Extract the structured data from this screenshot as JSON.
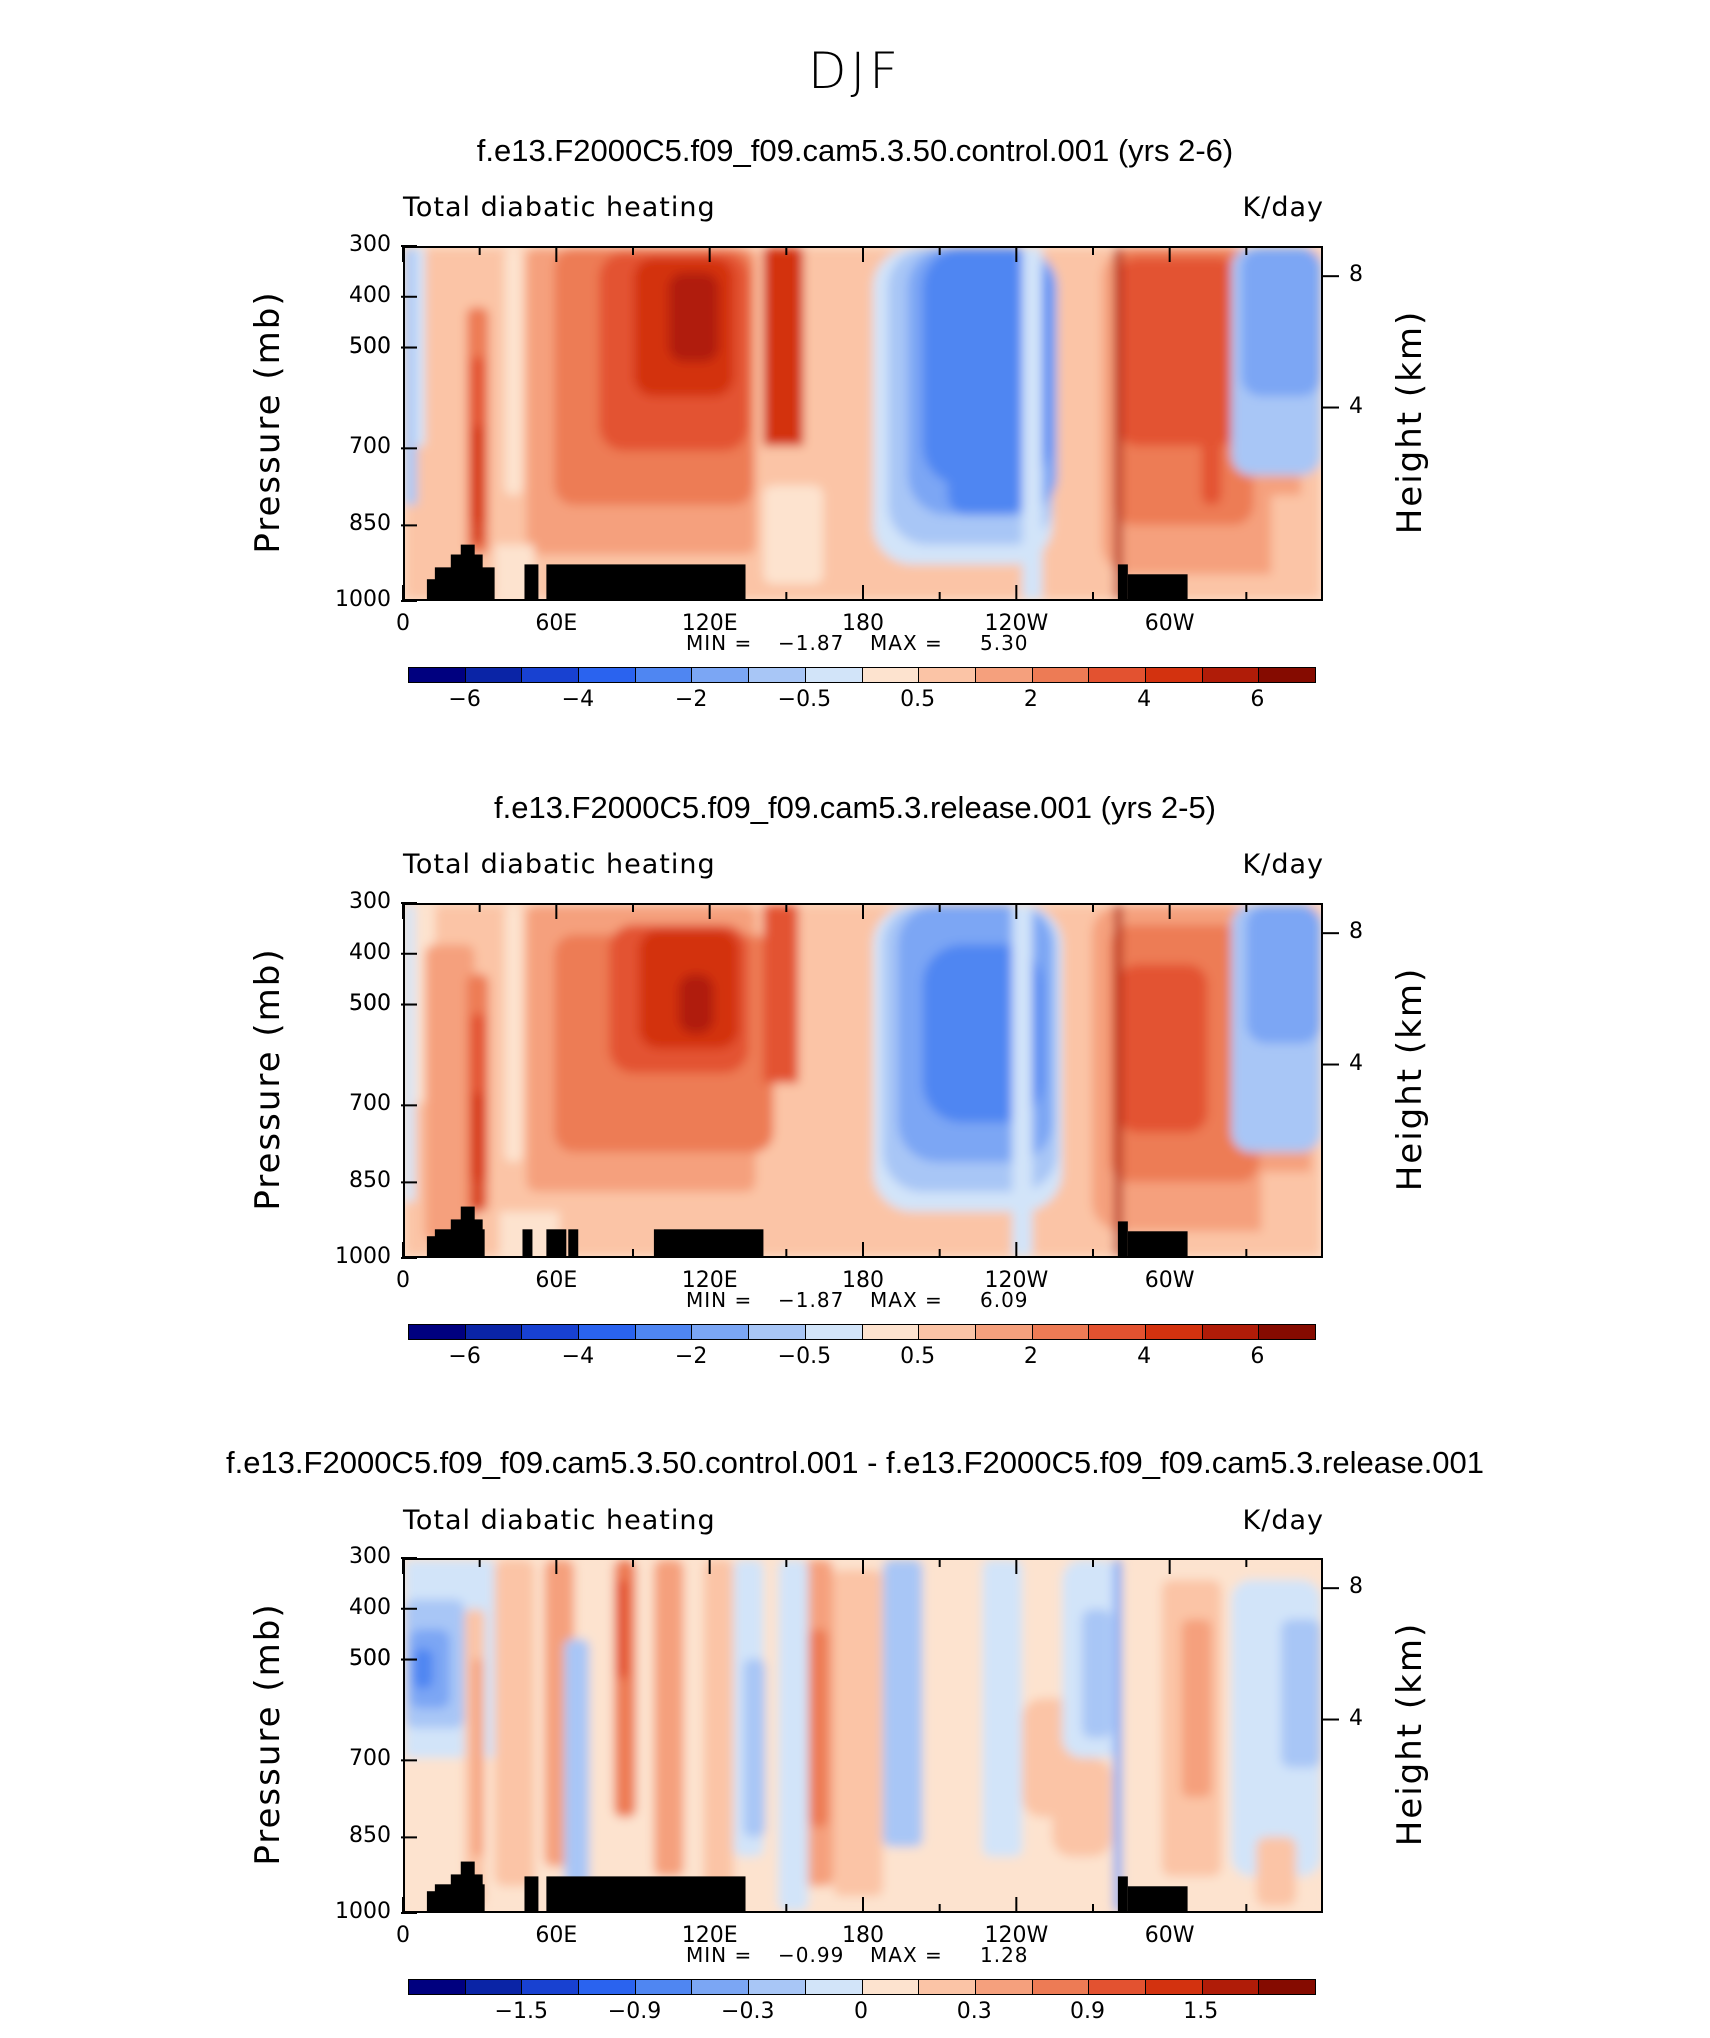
{
  "figure": {
    "title": "DJF"
  },
  "colors": {
    "diverging": [
      "#00007f",
      "#0a24a6",
      "#1841d1",
      "#2a63ef",
      "#4f86f2",
      "#7ba6f4",
      "#a8c6f6",
      "#d2e4f9",
      "#fde3cf",
      "#fbc4a6",
      "#f5a07d",
      "#ed7b55",
      "#e35230",
      "#d3320f",
      "#b01c08",
      "#850b00"
    ]
  },
  "chart_data": [
    {
      "type": "heatmap",
      "name": "control",
      "title": "f.e13.F2000C5.f09_f09.cam5.3.50.control.001 (yrs 2-6)",
      "left_string": "Total diabatic heating",
      "right_string": "K/day",
      "ylabel": "Pressure (mb)",
      "ylabel_right": "Height (km)",
      "yticks": [
        "300",
        "400",
        "500",
        "500",
        "700",
        "850",
        "1000"
      ],
      "yticks_right": [
        "8",
        "4"
      ],
      "xticks": [
        "0",
        "60E",
        "120E",
        "180",
        "120W",
        "60W"
      ],
      "min_label": "MIN =",
      "min_value": "−1.87",
      "max_label": "MAX =",
      "max_value": "5.30",
      "min": -1.87,
      "max": 5.3,
      "colorbar_labels": [
        "−6",
        "−4",
        "−2",
        "−0.5",
        "0.5",
        "2",
        "4",
        "6"
      ],
      "colorbar_levels": [
        -7,
        -6,
        -5,
        -4,
        -3,
        -2,
        -1,
        -0.5,
        0,
        0.5,
        1,
        2,
        3,
        4,
        5,
        6,
        7
      ]
    },
    {
      "type": "heatmap",
      "name": "release",
      "title": "f.e13.F2000C5.f09_f09.cam5.3.release.001 (yrs 2-5)",
      "left_string": "Total diabatic heating",
      "right_string": "K/day",
      "ylabel": "Pressure (mb)",
      "ylabel_right": "Height (km)",
      "yticks": [
        "300",
        "400",
        "500",
        "500",
        "700",
        "850",
        "1000"
      ],
      "yticks_right": [
        "8",
        "4"
      ],
      "xticks": [
        "0",
        "60E",
        "120E",
        "180",
        "120W",
        "60W"
      ],
      "min_label": "MIN =",
      "min_value": "−1.87",
      "max_label": "MAX =",
      "max_value": "6.09",
      "min": -1.87,
      "max": 6.09,
      "colorbar_labels": [
        "−6",
        "−4",
        "−2",
        "−0.5",
        "0.5",
        "2",
        "4",
        "6"
      ],
      "colorbar_levels": [
        -7,
        -6,
        -5,
        -4,
        -3,
        -2,
        -1,
        -0.5,
        0,
        0.5,
        1,
        2,
        3,
        4,
        5,
        6,
        7
      ]
    },
    {
      "type": "heatmap",
      "name": "difference",
      "title": "f.e13.F2000C5.f09_f09.cam5.3.50.control.001 - f.e13.F2000C5.f09_f09.cam5.3.release.001",
      "left_string": "Total diabatic heating",
      "right_string": "K/day",
      "ylabel": "Pressure (mb)",
      "ylabel_right": "Height (km)",
      "yticks": [
        "300",
        "400",
        "500",
        "500",
        "700",
        "850",
        "1000"
      ],
      "yticks_right": [
        "8",
        "4"
      ],
      "xticks": [
        "0",
        "60E",
        "120E",
        "180",
        "120W",
        "60W"
      ],
      "min_label": "MIN =",
      "min_value": "−0.99",
      "max_label": "MAX =",
      "max_value": "1.28",
      "min": -0.99,
      "max": 1.28,
      "colorbar_labels": [
        "−1.5",
        "−0.9",
        "−0.3",
        "0",
        "0.3",
        "0.9",
        "1.5"
      ],
      "colorbar_levels": [
        -2.1,
        -1.8,
        -1.5,
        -1.2,
        -0.9,
        -0.6,
        -0.3,
        -0.1,
        0,
        0.1,
        0.3,
        0.6,
        0.9,
        1.2,
        1.5,
        1.8,
        2.1
      ]
    }
  ]
}
